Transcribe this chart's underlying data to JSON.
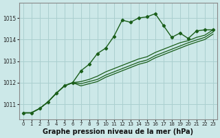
{
  "xlabel": "Graphe pression niveau de la mer (hPa)",
  "ylabel": "",
  "bg_color": "#cce8e8",
  "grid_color": "#aacfcf",
  "line_color": "#1a5e1a",
  "x": [
    0,
    1,
    2,
    3,
    4,
    5,
    6,
    7,
    8,
    9,
    10,
    11,
    12,
    13,
    14,
    15,
    16,
    17,
    18,
    19,
    20,
    21,
    22,
    23
  ],
  "y_main": [
    1010.6,
    1010.6,
    1010.8,
    1011.1,
    1011.5,
    1011.85,
    1012.0,
    1012.55,
    1012.85,
    1013.35,
    1013.6,
    1014.15,
    1014.9,
    1014.8,
    1015.0,
    1015.05,
    1015.2,
    1014.65,
    1014.1,
    1014.3,
    1014.05,
    1014.4,
    1014.45,
    1014.45
  ],
  "y_line2": [
    1010.6,
    1010.6,
    1010.8,
    1011.1,
    1011.5,
    1011.85,
    1012.0,
    1012.05,
    1012.15,
    1012.3,
    1012.5,
    1012.65,
    1012.8,
    1012.95,
    1013.1,
    1013.2,
    1013.4,
    1013.55,
    1013.7,
    1013.85,
    1013.95,
    1014.1,
    1014.2,
    1014.45
  ],
  "y_line3": [
    1010.6,
    1010.6,
    1010.8,
    1011.1,
    1011.5,
    1011.85,
    1012.0,
    1011.95,
    1012.05,
    1012.15,
    1012.35,
    1012.5,
    1012.65,
    1012.8,
    1012.95,
    1013.05,
    1013.25,
    1013.4,
    1013.55,
    1013.7,
    1013.85,
    1013.98,
    1014.1,
    1014.35
  ],
  "y_line4": [
    1010.6,
    1010.6,
    1010.8,
    1011.1,
    1011.5,
    1011.85,
    1012.0,
    1011.85,
    1011.95,
    1012.05,
    1012.25,
    1012.4,
    1012.55,
    1012.7,
    1012.85,
    1012.95,
    1013.15,
    1013.3,
    1013.45,
    1013.6,
    1013.75,
    1013.88,
    1014.0,
    1014.25
  ],
  "ylim": [
    1010.3,
    1015.7
  ],
  "yticks": [
    1011,
    1012,
    1013,
    1014,
    1015
  ],
  "xticks": [
    0,
    1,
    2,
    3,
    4,
    5,
    6,
    7,
    8,
    9,
    10,
    11,
    12,
    13,
    14,
    15,
    16,
    17,
    18,
    19,
    20,
    21,
    22,
    23
  ],
  "tick_fontsize": 5.5,
  "xlabel_fontsize": 7
}
